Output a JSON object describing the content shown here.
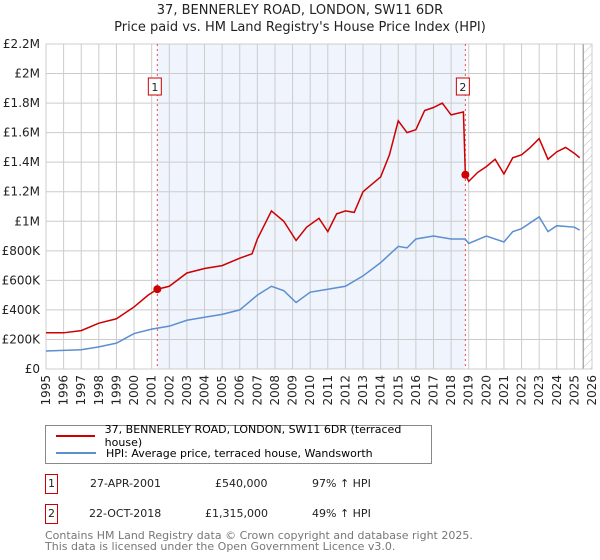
{
  "title": "37, BENNERLEY ROAD, LONDON, SW11 6DR",
  "subtitle": "Price paid vs. HM Land Registry's House Price Index (HPI)",
  "chart_data": {
    "type": "line",
    "title": "37, BENNERLEY ROAD, LONDON, SW11 6DR — Price paid vs. HM Land Registry's House Price Index (HPI)",
    "xlim": [
      1995,
      2026
    ],
    "ylim": [
      0,
      2200000
    ],
    "yticks": [
      0,
      200000,
      400000,
      600000,
      800000,
      1000000,
      1200000,
      1400000,
      1600000,
      1800000,
      2000000,
      2200000
    ],
    "ytick_labels": [
      "£0",
      "£200K",
      "£400K",
      "£600K",
      "£800K",
      "£1M",
      "£1.2M",
      "£1.4M",
      "£1.6M",
      "£1.8M",
      "£2M",
      "£2.2M"
    ],
    "xticks": [
      1995,
      1996,
      1997,
      1998,
      1999,
      2000,
      2001,
      2002,
      2003,
      2004,
      2005,
      2006,
      2007,
      2008,
      2009,
      2010,
      2011,
      2012,
      2013,
      2014,
      2015,
      2016,
      2017,
      2018,
      2019,
      2020,
      2021,
      2022,
      2023,
      2024,
      2025,
      2026
    ],
    "grid": true,
    "shaded_range": [
      2001.32,
      2018.81
    ],
    "future_hatch_from": 2025.5,
    "series": [
      {
        "name": "37, BENNERLEY ROAD, LONDON, SW11 6DR (terraced house)",
        "color": "#cc0000",
        "x": [
          1995,
          1996,
          1997,
          1998,
          1999,
          2000,
          2000.8,
          2001.32,
          2002,
          2003,
          2004,
          2005,
          2006,
          2006.7,
          2007,
          2007.8,
          2008.5,
          2009.2,
          2009.8,
          2010.5,
          2011,
          2011.5,
          2012,
          2012.5,
          2013,
          2014,
          2014.5,
          2015,
          2015.5,
          2016,
          2016.5,
          2017,
          2017.5,
          2018,
          2018.7,
          2018.81,
          2019,
          2019.5,
          2020,
          2020.5,
          2021,
          2021.5,
          2022,
          2022.5,
          2023,
          2023.5,
          2024,
          2024.5,
          2025,
          2025.3
        ],
        "y": [
          245000,
          245000,
          260000,
          310000,
          340000,
          420000,
          500000,
          540000,
          560000,
          650000,
          680000,
          700000,
          750000,
          780000,
          880000,
          1070000,
          1000000,
          870000,
          960000,
          1020000,
          930000,
          1050000,
          1070000,
          1060000,
          1200000,
          1300000,
          1450000,
          1680000,
          1600000,
          1620000,
          1750000,
          1770000,
          1800000,
          1720000,
          1740000,
          1315000,
          1270000,
          1330000,
          1370000,
          1420000,
          1320000,
          1430000,
          1450000,
          1500000,
          1560000,
          1420000,
          1470000,
          1500000,
          1460000,
          1430000
        ]
      },
      {
        "name": "HPI: Average price, terraced house, Wandsworth",
        "color": "#5b8fd0",
        "x": [
          1995,
          1997,
          1998,
          1999,
          2000,
          2001,
          2002,
          2003,
          2004,
          2005,
          2006,
          2007,
          2007.8,
          2008.5,
          2009.2,
          2010,
          2011,
          2012,
          2013,
          2014,
          2015,
          2015.5,
          2016,
          2017,
          2018,
          2018.8,
          2019,
          2020,
          2021,
          2021.5,
          2022,
          2023,
          2023.5,
          2024,
          2025,
          2025.3
        ],
        "y": [
          122000,
          130000,
          150000,
          175000,
          240000,
          270000,
          290000,
          330000,
          350000,
          370000,
          400000,
          500000,
          560000,
          530000,
          450000,
          520000,
          540000,
          560000,
          630000,
          720000,
          830000,
          820000,
          880000,
          900000,
          880000,
          880000,
          850000,
          900000,
          860000,
          930000,
          950000,
          1030000,
          930000,
          970000,
          960000,
          940000
        ]
      }
    ],
    "annotations": [
      {
        "label": "1",
        "x": 2001.32,
        "y": 540000
      },
      {
        "label": "2",
        "x": 2018.81,
        "y": 1315000
      }
    ]
  },
  "legend": [
    {
      "label": "37, BENNERLEY ROAD, LONDON, SW11 6DR (terraced house)",
      "color": "#cc0000"
    },
    {
      "label": "HPI: Average price, terraced house, Wandsworth",
      "color": "#5b8fd0"
    }
  ],
  "sales": [
    {
      "num": "1",
      "date": "27-APR-2001",
      "price": "£540,000",
      "hpi": "97% ↑ HPI"
    },
    {
      "num": "2",
      "date": "22-OCT-2018",
      "price": "£1,315,000",
      "hpi": "49% ↑ HPI"
    }
  ],
  "footer": [
    "Contains HM Land Registry data © Crown copyright and database right 2025.",
    "This data is licensed under the Open Government Licence v3.0."
  ]
}
